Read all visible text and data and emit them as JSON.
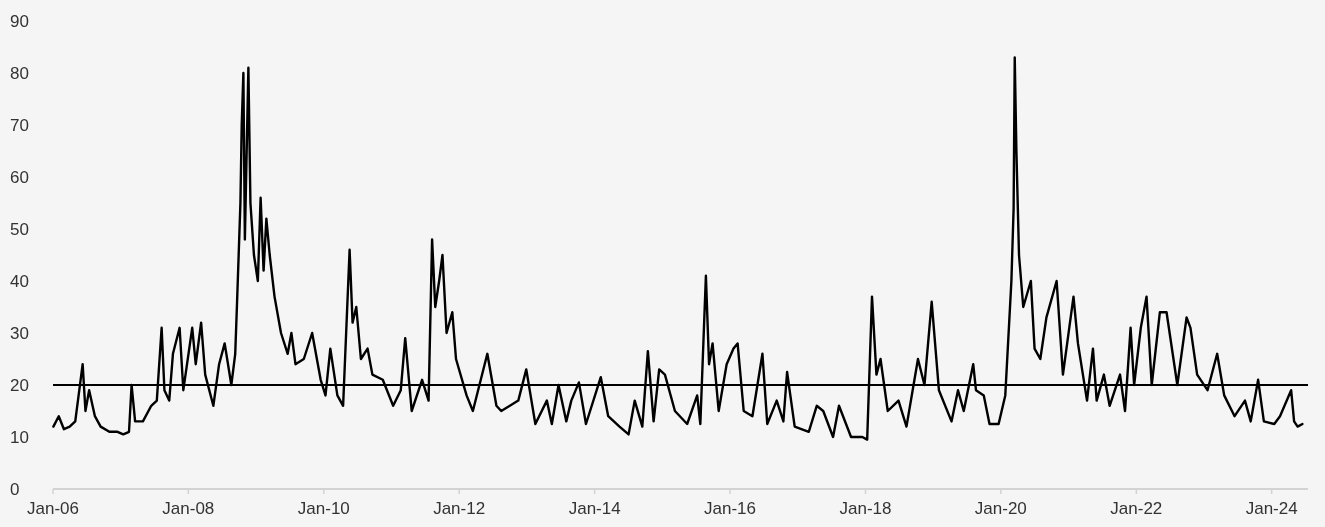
{
  "chart_data": {
    "type": "line",
    "x": [
      "2006-01-03",
      "2006-02-01",
      "2006-03-01",
      "2006-04-01",
      "2006-05-01",
      "2006-06-10",
      "2006-06-25",
      "2006-07-15",
      "2006-08-15",
      "2006-09-15",
      "2006-11-01",
      "2006-12-15",
      "2007-01-15",
      "2007-02-15",
      "2007-03-01",
      "2007-03-20",
      "2007-05-01",
      "2007-06-15",
      "2007-07-15",
      "2007-08-10",
      "2007-08-25",
      "2007-09-20",
      "2007-10-10",
      "2007-11-15",
      "2007-12-05",
      "2008-01-22",
      "2008-02-10",
      "2008-03-10",
      "2008-04-01",
      "2008-05-15",
      "2008-06-15",
      "2008-07-15",
      "2008-08-20",
      "2008-09-10",
      "2008-09-20",
      "2008-10-08",
      "2008-10-15",
      "2008-10-24",
      "2008-11-01",
      "2008-11-20",
      "2008-12-01",
      "2008-12-20",
      "2009-01-10",
      "2009-01-25",
      "2009-02-10",
      "2009-02-25",
      "2009-03-15",
      "2009-04-10",
      "2009-05-15",
      "2009-06-20",
      "2009-07-10",
      "2009-08-01",
      "2009-09-15",
      "2009-10-30",
      "2009-12-15",
      "2010-01-10",
      "2010-02-05",
      "2010-03-15",
      "2010-04-15",
      "2010-05-20",
      "2010-06-05",
      "2010-06-25",
      "2010-07-20",
      "2010-08-25",
      "2010-09-20",
      "2010-11-15",
      "2011-01-10",
      "2011-02-20",
      "2011-03-16",
      "2011-04-20",
      "2011-06-15",
      "2011-07-20",
      "2011-08-08",
      "2011-08-25",
      "2011-09-15",
      "2011-10-03",
      "2011-10-25",
      "2011-11-25",
      "2011-12-15",
      "2012-02-10",
      "2012-03-15",
      "2012-06-01",
      "2012-07-20",
      "2012-08-15",
      "2012-11-15",
      "2012-12-28",
      "2013-02-15",
      "2013-04-18",
      "2013-05-15",
      "2013-06-20",
      "2013-08-01",
      "2013-08-28",
      "2013-10-08",
      "2013-11-15",
      "2014-02-03",
      "2014-03-15",
      "2014-05-15",
      "2014-07-03",
      "2014-08-05",
      "2014-09-15",
      "2014-10-15",
      "2014-11-15",
      "2014-12-15",
      "2015-01-15",
      "2015-03-10",
      "2015-05-15",
      "2015-07-08",
      "2015-07-25",
      "2015-08-24",
      "2015-09-10",
      "2015-09-29",
      "2015-11-01",
      "2015-12-14",
      "2016-01-20",
      "2016-02-11",
      "2016-03-15",
      "2016-05-01",
      "2016-06-24",
      "2016-07-20",
      "2016-09-09",
      "2016-10-15",
      "2016-11-04",
      "2016-12-15",
      "2017-03-01",
      "2017-04-13",
      "2017-05-18",
      "2017-07-10",
      "2017-08-11",
      "2017-10-15",
      "2017-12-15",
      "2018-01-10",
      "2018-02-05",
      "2018-03-01",
      "2018-03-23",
      "2018-05-01",
      "2018-06-28",
      "2018-08-10",
      "2018-10-11",
      "2018-11-15",
      "2018-12-24",
      "2019-02-01",
      "2019-04-10",
      "2019-05-15",
      "2019-06-15",
      "2019-08-05",
      "2019-08-20",
      "2019-10-01",
      "2019-11-01",
      "2019-12-20",
      "2020-01-25",
      "2020-02-27",
      "2020-03-10",
      "2020-03-16",
      "2020-03-25",
      "2020-04-08",
      "2020-05-01",
      "2020-06-11",
      "2020-07-01",
      "2020-08-01",
      "2020-09-03",
      "2020-10-28",
      "2020-12-01",
      "2021-01-27",
      "2021-02-20",
      "2021-04-10",
      "2021-05-12",
      "2021-06-01",
      "2021-07-10",
      "2021-08-10",
      "2021-10-05",
      "2021-11-01",
      "2021-12-01",
      "2021-12-20",
      "2022-01-25",
      "2022-02-25",
      "2022-03-25",
      "2022-05-08",
      "2022-06-13",
      "2022-08-10",
      "2022-09-29",
      "2022-10-20",
      "2022-11-25",
      "2023-01-20",
      "2023-03-13",
      "2023-04-20",
      "2023-06-15",
      "2023-08-10",
      "2023-09-10",
      "2023-10-20",
      "2023-11-20",
      "2024-01-15",
      "2024-02-15",
      "2024-04-15",
      "2024-05-01",
      "2024-05-20",
      "2024-06-15"
    ],
    "values": [
      12,
      14,
      11.5,
      12,
      13,
      24,
      15,
      19,
      14,
      12,
      11,
      11,
      10.5,
      11,
      20,
      13,
      13,
      16,
      17,
      31,
      19,
      17,
      26,
      31,
      19,
      31,
      24,
      32,
      22,
      16,
      24,
      28,
      20,
      26,
      36,
      55,
      70,
      80,
      48,
      81,
      55,
      45,
      40,
      56,
      42,
      52,
      45,
      37,
      30,
      26,
      30,
      24,
      25,
      30,
      21,
      18,
      27,
      18,
      16,
      46,
      32,
      35,
      25,
      27,
      22,
      21,
      16,
      19,
      29,
      15,
      21,
      17,
      48,
      35,
      40,
      45,
      30,
      34,
      25,
      18,
      15,
      26,
      16,
      15,
      17,
      23,
      12.5,
      17,
      12.5,
      20,
      13,
      17,
      20.5,
      12.5,
      21.5,
      14,
      12,
      10.5,
      17,
      12,
      26.5,
      13,
      23,
      22,
      15,
      12.5,
      18,
      12.5,
      41,
      24,
      28,
      15,
      24,
      27,
      28,
      15,
      14,
      26,
      12.5,
      17,
      13,
      22.5,
      12,
      11,
      16,
      15,
      10,
      16,
      10,
      10,
      9.5,
      37,
      22,
      25,
      15,
      17,
      12,
      25,
      20,
      36,
      19,
      13,
      19,
      15,
      24,
      19,
      18,
      12.5,
      12.5,
      18,
      40,
      54,
      83,
      65,
      45,
      35,
      40,
      27,
      25,
      33,
      40,
      22,
      37,
      28,
      17,
      27,
      17,
      22,
      16,
      22,
      15,
      31,
      20,
      31,
      37,
      20,
      34,
      34,
      20,
      33,
      31,
      22,
      19,
      26,
      18,
      14,
      17,
      13,
      21,
      13,
      12.5,
      14,
      19,
      13,
      12,
      12.5
    ],
    "color": "#000000",
    "xlim": [
      "2006-01-01",
      "2024-07-15"
    ],
    "xticks": [
      {
        "value": "2006-01-01",
        "label": "Jan-06"
      },
      {
        "value": "2008-01-01",
        "label": "Jan-08"
      },
      {
        "value": "2010-01-01",
        "label": "Jan-10"
      },
      {
        "value": "2012-01-01",
        "label": "Jan-12"
      },
      {
        "value": "2014-01-01",
        "label": "Jan-14"
      },
      {
        "value": "2016-01-01",
        "label": "Jan-16"
      },
      {
        "value": "2018-01-01",
        "label": "Jan-18"
      },
      {
        "value": "2020-01-01",
        "label": "Jan-20"
      },
      {
        "value": "2022-01-01",
        "label": "Jan-22"
      },
      {
        "value": "2024-01-01",
        "label": "Jan-24"
      }
    ],
    "ylim": [
      0,
      90
    ],
    "yticks": [
      0,
      10,
      20,
      30,
      40,
      50,
      60,
      70,
      80,
      90
    ],
    "ref_lines": [
      {
        "axis": "y",
        "value": 20,
        "color": "#000000"
      }
    ],
    "grid": false
  }
}
